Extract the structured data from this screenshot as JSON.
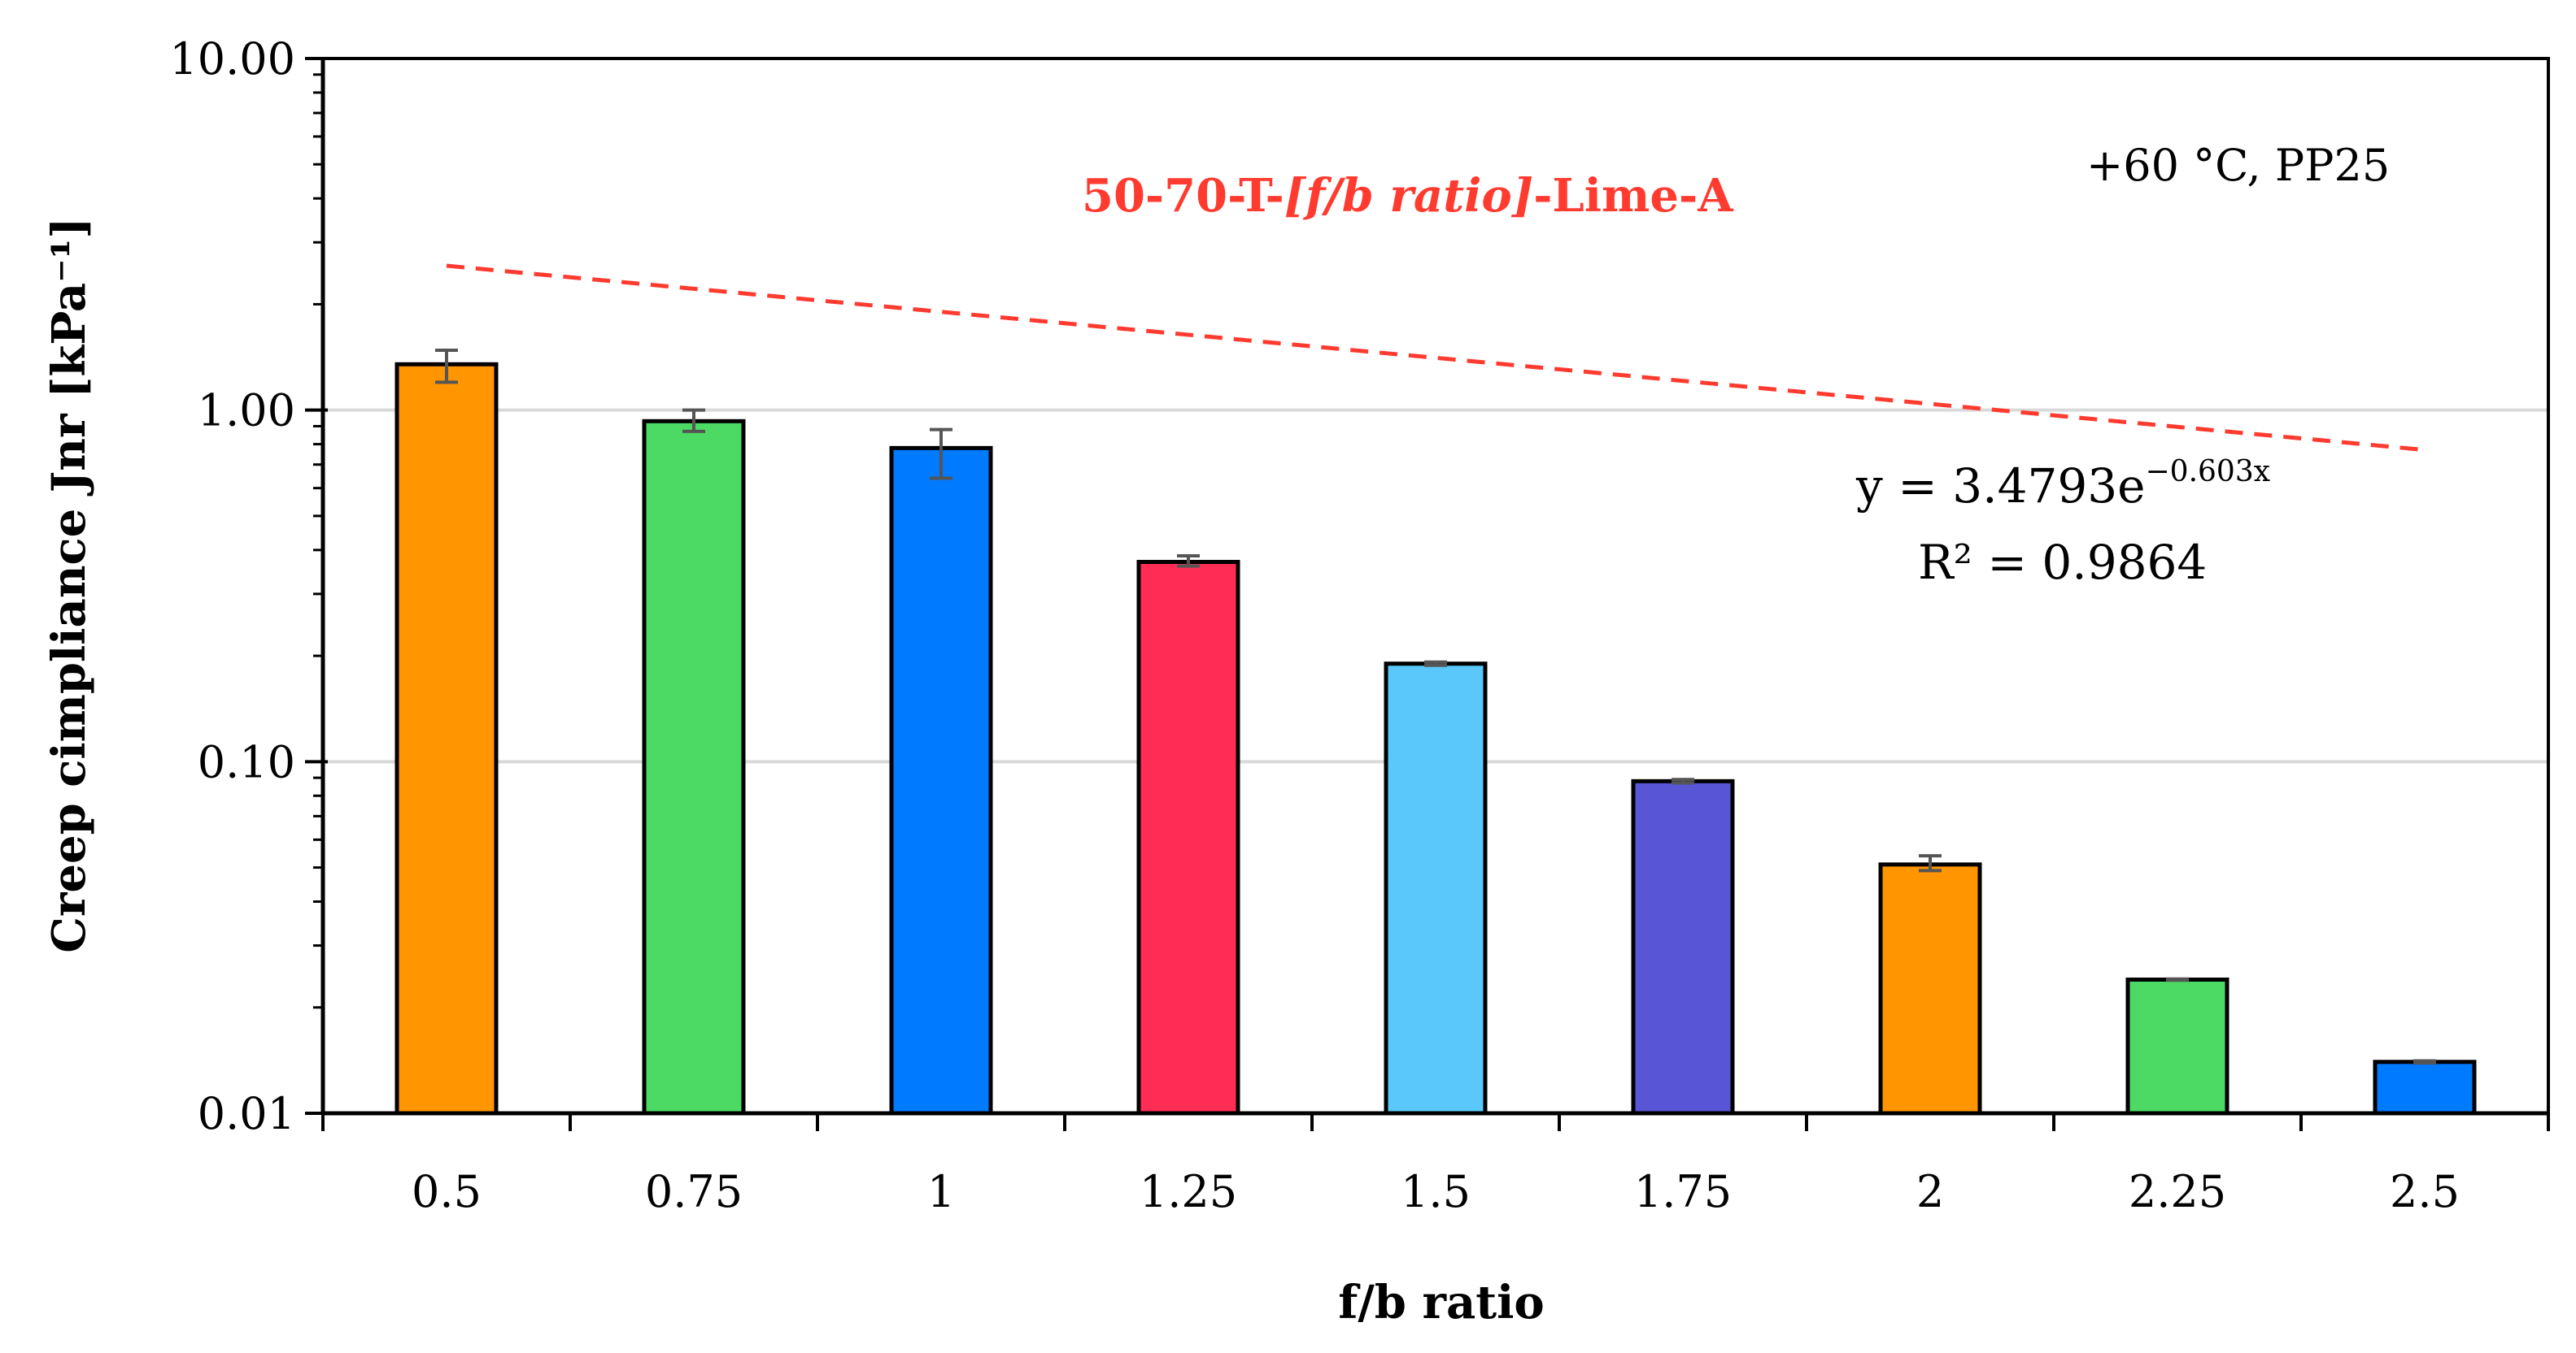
{
  "chart_data": {
    "type": "bar",
    "title": "50-70-T-[f/b ratio]-Lime-A",
    "title_parts": {
      "prefix": "50-70-T-",
      "italic": "[f/b ratio]",
      "suffix": "-Lime-A"
    },
    "condition_label": "+60 °C, PP25",
    "xlabel": "f/b ratio",
    "ylabel": "Creep cimpliance Jnr [kPa⁻¹]",
    "yscale": "log",
    "ylim": [
      0.01,
      10
    ],
    "yticks": [
      {
        "value": 0.01,
        "label": "0.01"
      },
      {
        "value": 0.1,
        "label": "0.10"
      },
      {
        "value": 1,
        "label": "1.00"
      },
      {
        "value": 10,
        "label": "10.00"
      }
    ],
    "grid": "horizontal",
    "categories": [
      "0.5",
      "0.75",
      "1",
      "1.25",
      "1.5",
      "1.75",
      "2",
      "2.25",
      "2.5"
    ],
    "x_numeric": [
      0.5,
      0.75,
      1,
      1.25,
      1.5,
      1.75,
      2,
      2.25,
      2.5
    ],
    "values": [
      1.35,
      0.93,
      0.78,
      0.37,
      0.19,
      0.088,
      0.051,
      0.024,
      0.014
    ],
    "error_low": [
      1.2,
      0.87,
      0.64,
      0.36,
      0.188,
      0.087,
      0.049,
      0.0239,
      0.0139
    ],
    "error_high": [
      1.48,
      1.0,
      0.88,
      0.385,
      0.192,
      0.089,
      0.054,
      0.0241,
      0.0141
    ],
    "bar_colors": [
      "#FF9500",
      "#4CD964",
      "#007AFF",
      "#FF2D55",
      "#5AC8FA",
      "#5856D6",
      "#FF9500",
      "#4CD964",
      "#007AFF"
    ],
    "trendline": {
      "type": "exponential",
      "a": 3.4793,
      "b": -0.603,
      "color": "#FF3B30",
      "style": "dashed",
      "equation_main": "y = 3.4793e",
      "equation_exp": "−0.603x",
      "r2_label": "R² = 0.9864"
    }
  }
}
